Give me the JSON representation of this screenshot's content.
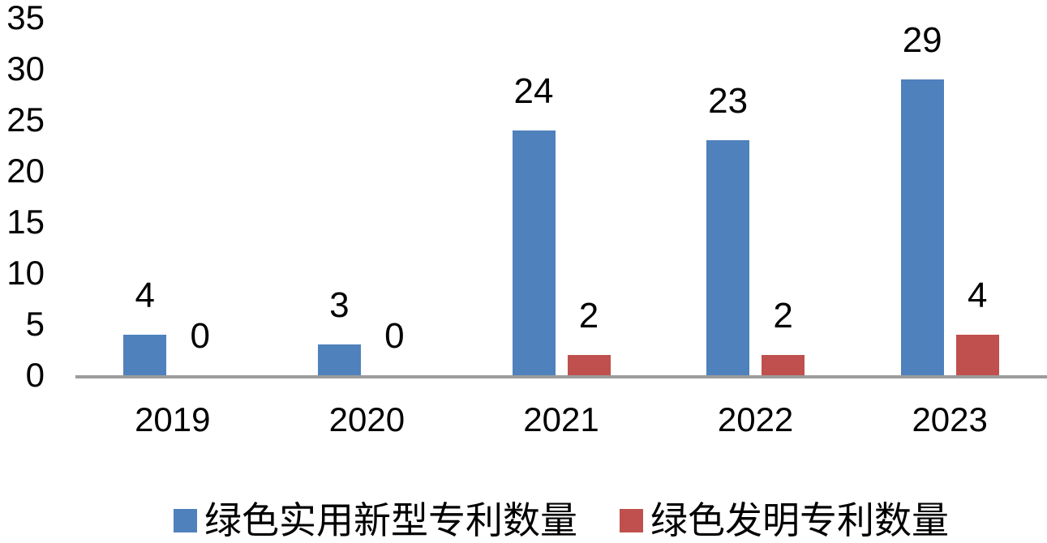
{
  "chart_data": {
    "type": "bar",
    "title": "",
    "xlabel": "",
    "ylabel": "",
    "categories": [
      "2019",
      "2020",
      "2021",
      "2022",
      "2023"
    ],
    "series": [
      {
        "name": "绿色实用新型专利数量",
        "color": "#4F81BD",
        "values": [
          4,
          3,
          24,
          23,
          29
        ]
      },
      {
        "name": "绿色发明专利数量",
        "color": "#C0504D",
        "values": [
          0,
          0,
          2,
          2,
          4
        ]
      }
    ],
    "ylim": [
      0,
      35
    ],
    "yticks": [
      35,
      30,
      25,
      20,
      15,
      10,
      5,
      0
    ],
    "grid": false,
    "data_labels": true,
    "legend_position": "bottom"
  },
  "legend": {
    "items": [
      {
        "label": "绿色实用新型专利数量",
        "color": "#4F81BD"
      },
      {
        "label": "绿色发明专利数量",
        "color": "#C0504D"
      }
    ]
  },
  "colors": {
    "axis_line": "#9C9C9C",
    "label_text": "#000000",
    "background": "#FFFFFF"
  }
}
